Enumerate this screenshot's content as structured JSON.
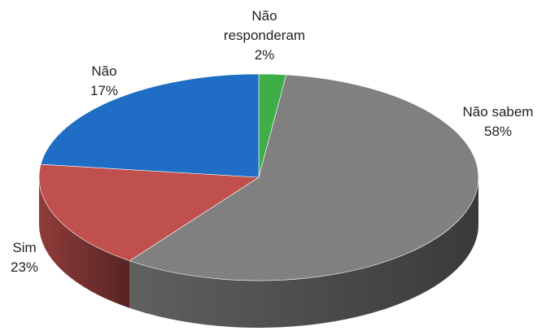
{
  "chart_data": {
    "type": "pie",
    "categories": [
      "Não responderam",
      "Não sabem",
      "Não",
      "Sim"
    ],
    "values": [
      2,
      58,
      17,
      23
    ],
    "value_labels": [
      "2%",
      "58%",
      "17%",
      "23%"
    ],
    "colors": [
      "#3fae49",
      "#808080",
      "#c0504d",
      "#1f6dc4"
    ]
  }
}
